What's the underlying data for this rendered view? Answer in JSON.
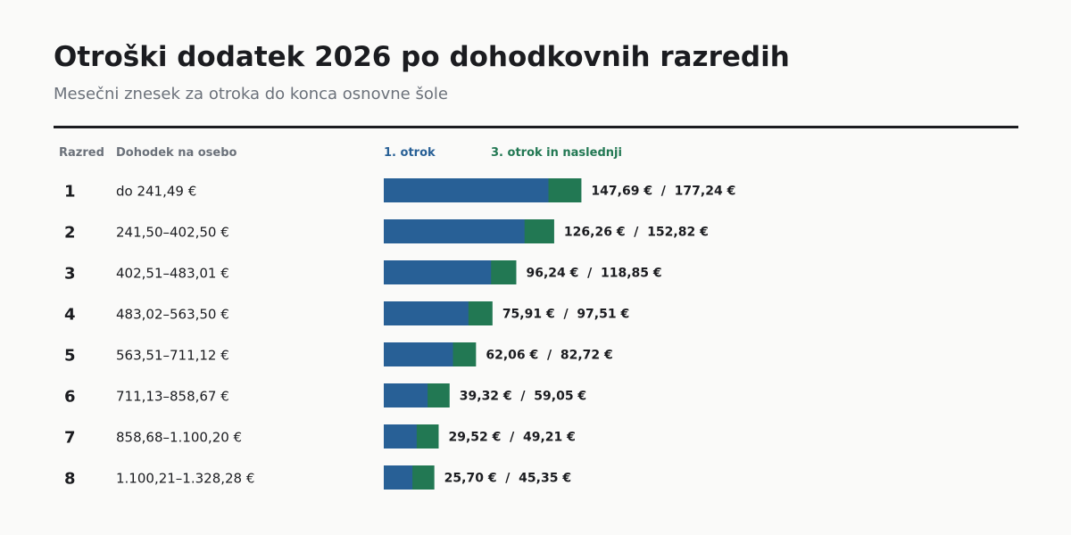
{
  "chart_data": {
    "type": "bar",
    "title": "Otroški dodatek 2026 po dohodkovnih razredih",
    "subtitle": "Mesečni znesek za otroka do konca osnovne šole",
    "columns": {
      "rank": "Razred",
      "income": "Dohodek na osebo"
    },
    "legend_placement": "top",
    "series": [
      {
        "name": "1. otrok",
        "color": "#286096",
        "values": [
          147.69,
          126.26,
          96.24,
          75.91,
          62.06,
          39.32,
          29.52,
          25.7
        ]
      },
      {
        "name": "3. otrok in naslednji",
        "color": "#227853",
        "values": [
          177.24,
          152.82,
          118.85,
          97.51,
          82.72,
          59.05,
          49.21,
          45.35
        ]
      }
    ],
    "categories": [
      "1",
      "2",
      "3",
      "4",
      "5",
      "6",
      "7",
      "8"
    ],
    "income_ranges": [
      "do 241,49 €",
      "241,50–402,50 €",
      "402,51–483,01 €",
      "483,02–563,50 €",
      "563,51–711,12 €",
      "711,13–858,67 €",
      "858,68–1.100,20 €",
      "1.100,21–1.328,28 €"
    ],
    "value_labels": [
      "147,69 €  /  177,24 €",
      "126,26 €  /  152,82 €",
      "96,24 €  /  118,85 €",
      "75,91 €  /  97,51 €",
      "62,06 €  /  82,72 €",
      "39,32 €  /  59,05 €",
      "29,52 €  /  49,21 €",
      "25,70 €  /  45,35 €"
    ],
    "xlim": [
      0,
      377
    ]
  }
}
